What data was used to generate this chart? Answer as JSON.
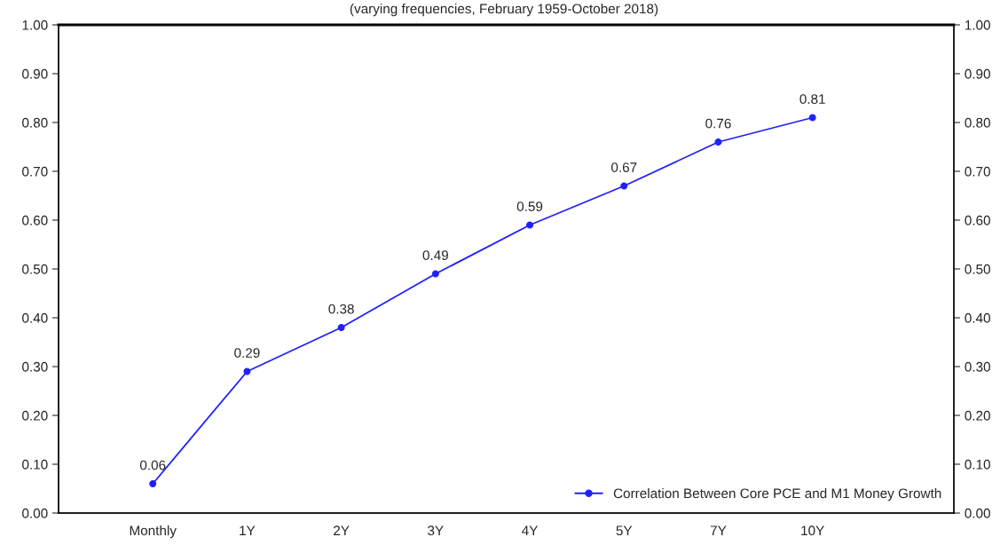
{
  "chart_data": {
    "type": "line",
    "subtitle": "(varying frequencies, February 1959-October 2018)",
    "categories": [
      "Monthly",
      "1Y",
      "2Y",
      "3Y",
      "4Y",
      "5Y",
      "7Y",
      "10Y"
    ],
    "series": [
      {
        "name": "Correlation Between Core PCE and M1 Money Growth",
        "color": "#2020ff",
        "values": [
          0.06,
          0.29,
          0.38,
          0.49,
          0.59,
          0.67,
          0.76,
          0.81
        ]
      }
    ],
    "data_labels": true,
    "marker": "circle",
    "line_style": "solid",
    "legend": "bottom right",
    "grid": false,
    "ylim": [
      0,
      1
    ],
    "yticks": [
      {
        "value": 0,
        "label": "0.00"
      },
      {
        "value": 0.1,
        "label": "0.10"
      },
      {
        "value": 0.2,
        "label": "0.20"
      },
      {
        "value": 0.3,
        "label": "0.30"
      },
      {
        "value": 0.4,
        "label": "0.40"
      },
      {
        "value": 0.5,
        "label": "0.50"
      },
      {
        "value": 0.6,
        "label": "0.60"
      },
      {
        "value": 0.7,
        "label": "0.70"
      },
      {
        "value": 0.8,
        "label": "0.80"
      },
      {
        "value": 0.9,
        "label": "0.90"
      },
      {
        "value": 1,
        "label": "1.00"
      }
    ],
    "y2lim": [
      0,
      1
    ],
    "y2ticks": [
      {
        "value": 0,
        "label": "0.00"
      },
      {
        "value": 0.1,
        "label": "0.10"
      },
      {
        "value": 0.2,
        "label": "0.20"
      },
      {
        "value": 0.3,
        "label": "0.30"
      },
      {
        "value": 0.4,
        "label": "0.40"
      },
      {
        "value": 0.5,
        "label": "0.50"
      },
      {
        "value": 0.6,
        "label": "0.60"
      },
      {
        "value": 0.7,
        "label": "0.70"
      },
      {
        "value": 0.8,
        "label": "0.80"
      },
      {
        "value": 0.9,
        "label": "0.90"
      },
      {
        "value": 1,
        "label": "1.00"
      }
    ]
  }
}
